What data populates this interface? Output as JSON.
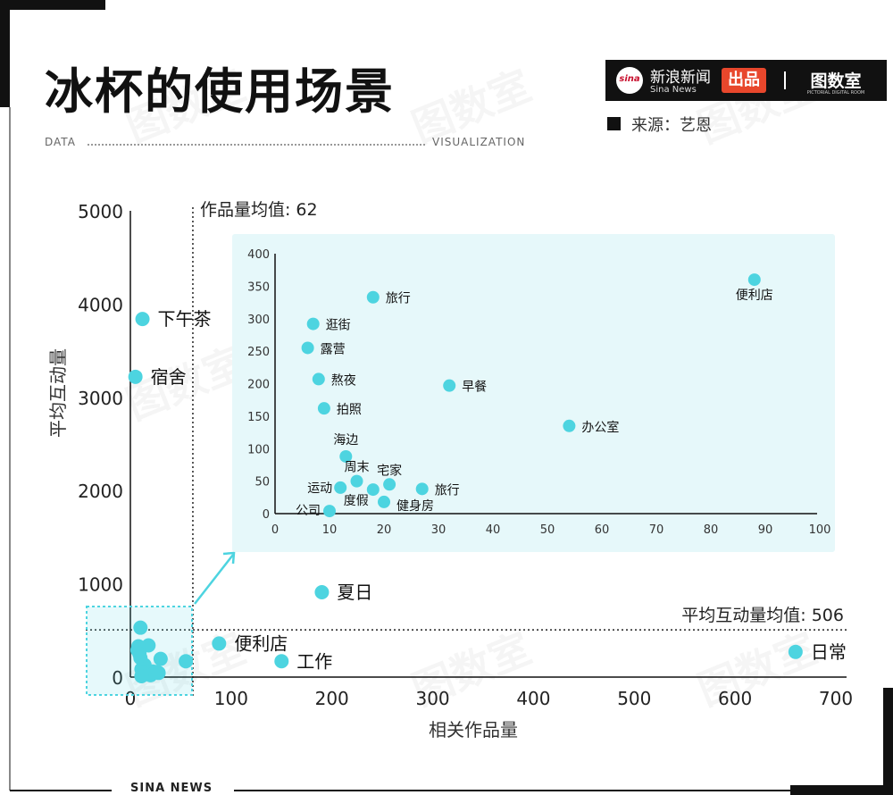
{
  "title": "冰杯的使用场景",
  "header": {
    "tag_left": "DATA",
    "tag_right": "VISUALIZATION",
    "brand_name": "新浪新闻",
    "brand_sub": "Sina News",
    "brand_badge": "出品",
    "brand_logo": "sina",
    "brand_lab": "图数室",
    "brand_lab_sub": "PICTORIAL DIGITAL ROOM",
    "source": "来源：艺恩"
  },
  "footer": {
    "text": "SINA NEWS"
  },
  "watermark": "图数室",
  "colors": {
    "point": "#4dd4e0",
    "inset_bg": "#e6f8fa",
    "arrow": "#4dd4e0",
    "text": "#111111",
    "accent_bar": "#111111"
  },
  "chart_data": [
    {
      "type": "scatter",
      "xlabel": "相关作品量",
      "ylabel": "平均互动量",
      "xlim": [
        0,
        700
      ],
      "ylim": [
        0,
        5000
      ],
      "xticks": [
        0,
        100,
        200,
        300,
        400,
        500,
        600,
        700
      ],
      "yticks": [
        0,
        1000,
        2000,
        3000,
        4000,
        5000
      ],
      "reference_lines": [
        {
          "axis": "x",
          "value": 62,
          "label": "作品量均值: 62"
        },
        {
          "axis": "y",
          "value": 506,
          "label": "平均互动量均值: 506"
        }
      ],
      "points": [
        {
          "label": "下午茶",
          "x": 12,
          "y": 3840
        },
        {
          "label": "宿舍",
          "x": 5,
          "y": 3220
        },
        {
          "label": "夏日",
          "x": 190,
          "y": 910
        },
        {
          "label": "便利店",
          "x": 88,
          "y": 360
        },
        {
          "label": "工作",
          "x": 150,
          "y": 170
        },
        {
          "label": "日常",
          "x": 660,
          "y": 270
        },
        {
          "label": "",
          "x": 10,
          "y": 530
        },
        {
          "label": "",
          "x": 18,
          "y": 340
        },
        {
          "label": "",
          "x": 8,
          "y": 330
        },
        {
          "label": "",
          "x": 7,
          "y": 290
        },
        {
          "label": "",
          "x": 9,
          "y": 250
        },
        {
          "label": "",
          "x": 10,
          "y": 205
        },
        {
          "label": "",
          "x": 30,
          "y": 195
        },
        {
          "label": "",
          "x": 55,
          "y": 170
        },
        {
          "label": "",
          "x": 14,
          "y": 130
        },
        {
          "label": "",
          "x": 11,
          "y": 85
        },
        {
          "label": "",
          "x": 17,
          "y": 50
        },
        {
          "label": "",
          "x": 19,
          "y": 38
        },
        {
          "label": "",
          "x": 13,
          "y": 45
        },
        {
          "label": "",
          "x": 22,
          "y": 60
        },
        {
          "label": "",
          "x": 25,
          "y": 55
        },
        {
          "label": "",
          "x": 20,
          "y": 20
        },
        {
          "label": "",
          "x": 28,
          "y": 45
        },
        {
          "label": "",
          "x": 11,
          "y": 10
        }
      ]
    },
    {
      "type": "scatter",
      "xlim": [
        0,
        100
      ],
      "ylim": [
        0,
        400
      ],
      "xticks": [
        0,
        10,
        20,
        30,
        40,
        50,
        60,
        70,
        80,
        90,
        100
      ],
      "yticks": [
        0,
        50,
        100,
        150,
        200,
        250,
        300,
        350,
        400
      ],
      "points": [
        {
          "label": "便利店",
          "x": 88,
          "y": 360
        },
        {
          "label": "旅行",
          "x": 18,
          "y": 333
        },
        {
          "label": "逛街",
          "x": 7,
          "y": 292
        },
        {
          "label": "露营",
          "x": 6,
          "y": 255
        },
        {
          "label": "熬夜",
          "x": 8,
          "y": 207
        },
        {
          "label": "早餐",
          "x": 32,
          "y": 197
        },
        {
          "label": "拍照",
          "x": 9,
          "y": 162
        },
        {
          "label": "办公室",
          "x": 54,
          "y": 135
        },
        {
          "label": "海边",
          "x": 13,
          "y": 88
        },
        {
          "label": "周末",
          "x": 15,
          "y": 50
        },
        {
          "label": "宅家",
          "x": 21,
          "y": 45
        },
        {
          "label": "运动",
          "x": 12,
          "y": 40
        },
        {
          "label": "旅行",
          "x": 27,
          "y": 38
        },
        {
          "label": "度假",
          "x": 18,
          "y": 37
        },
        {
          "label": "健身房",
          "x": 20,
          "y": 18
        },
        {
          "label": "公司",
          "x": 10,
          "y": 4
        }
      ]
    }
  ]
}
